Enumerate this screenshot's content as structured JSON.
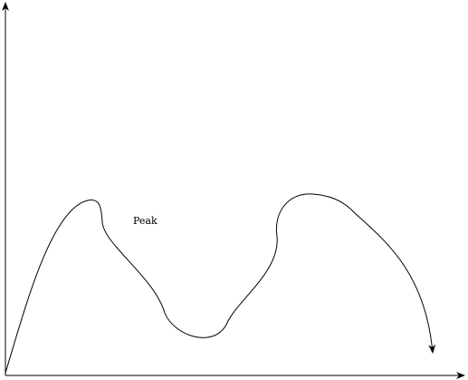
{
  "diagram": {
    "label": "Peak",
    "stroke_color": "#000000",
    "background_color": "#ffffff"
  }
}
